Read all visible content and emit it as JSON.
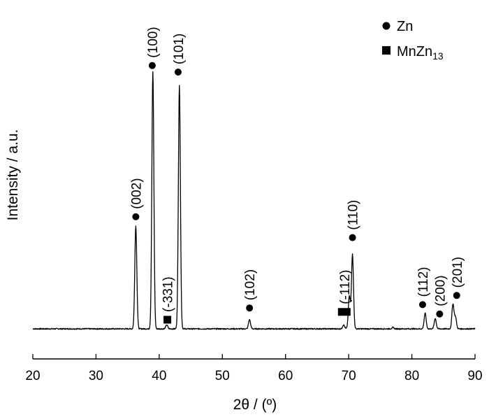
{
  "chart_data": {
    "type": "line",
    "xlabel": "2θ / (º)",
    "ylabel": "Intensity / a.u.",
    "xlim": [
      20,
      90
    ],
    "xticks": [
      "20",
      "30",
      "40",
      "50",
      "60",
      "70",
      "80",
      "90"
    ],
    "legend": {
      "placement": "top-right",
      "items": [
        {
          "marker": "circle",
          "label": "Zn"
        },
        {
          "marker": "square",
          "label": "MnZn",
          "subscript": "13"
        }
      ]
    },
    "baseline_intensity": 1.5,
    "series": [
      {
        "peaks": [
          {
            "x": 36.3,
            "y": 41
          },
          {
            "x": 39.0,
            "y": 100
          },
          {
            "x": 41.2,
            "y": 3
          },
          {
            "x": 43.2,
            "y": 95
          },
          {
            "x": 54.3,
            "y": 5
          },
          {
            "x": 69.2,
            "y": 3
          },
          {
            "x": 70.1,
            "y": 14
          },
          {
            "x": 70.6,
            "y": 30
          },
          {
            "x": 77.0,
            "y": 2
          },
          {
            "x": 82.1,
            "y": 7.5
          },
          {
            "x": 83.7,
            "y": 5.5
          },
          {
            "x": 86.5,
            "y": 11
          },
          {
            "x": 86.9,
            "y": 6
          }
        ]
      }
    ],
    "annotations": [
      {
        "label": "(002)",
        "phase": "Zn",
        "x": 36.3,
        "y": 44.5
      },
      {
        "label": "(100)",
        "phase": "Zn",
        "x": 38.9,
        "y": 102.5
      },
      {
        "label": "(101)",
        "phase": "Zn",
        "x": 43.0,
        "y": 100
      },
      {
        "label": "(-331)",
        "phase": "MnZn13",
        "x": 41.3,
        "y": 5
      },
      {
        "label": "(102)",
        "phase": "Zn",
        "x": 54.3,
        "y": 9.5
      },
      {
        "label": "(-112)",
        "phase": "MnZn13",
        "x": 69.3,
        "y": 8
      },
      {
        "label": "(110)",
        "phase": "Zn",
        "x": 70.6,
        "y": 36.5
      },
      {
        "label": "(112)",
        "phase": "Zn",
        "x": 81.7,
        "y": 10.8
      },
      {
        "label": "(200)",
        "phase": "Zn",
        "x": 84.4,
        "y": 7.2
      },
      {
        "label": "(201)",
        "phase": "Zn",
        "x": 87.1,
        "y": 14.3
      }
    ]
  }
}
